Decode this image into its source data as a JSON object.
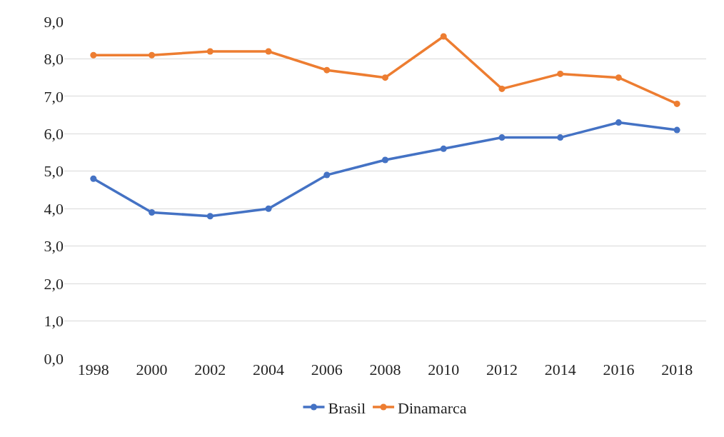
{
  "chart_data": {
    "type": "line",
    "categories": [
      "1998",
      "2000",
      "2002",
      "2004",
      "2006",
      "2008",
      "2010",
      "2012",
      "2014",
      "2016",
      "2018"
    ],
    "series": [
      {
        "name": "Brasil",
        "color": "#4472c4",
        "values": [
          4.8,
          3.9,
          3.8,
          4.0,
          4.9,
          5.3,
          5.6,
          5.9,
          5.9,
          6.3,
          6.1
        ]
      },
      {
        "name": "Dinamarca",
        "color": "#ed7d31",
        "values": [
          8.1,
          8.1,
          8.2,
          8.2,
          7.7,
          7.5,
          8.6,
          7.2,
          7.6,
          7.5,
          6.8
        ]
      }
    ],
    "ylim": [
      0,
      9
    ],
    "yticks": [
      {
        "value": 0,
        "label": "0,0"
      },
      {
        "value": 1,
        "label": "1,0"
      },
      {
        "value": 2,
        "label": "2,0"
      },
      {
        "value": 3,
        "label": "3,0"
      },
      {
        "value": 4,
        "label": "4,0"
      },
      {
        "value": 5,
        "label": "5,0"
      },
      {
        "value": 6,
        "label": "6,0"
      },
      {
        "value": 7,
        "label": "7,0"
      },
      {
        "value": 8,
        "label": "8,0"
      },
      {
        "value": 9,
        "label": "9,0"
      }
    ],
    "grid": "y",
    "legend": "bottom",
    "marker": "circle",
    "line_style": "solid"
  }
}
